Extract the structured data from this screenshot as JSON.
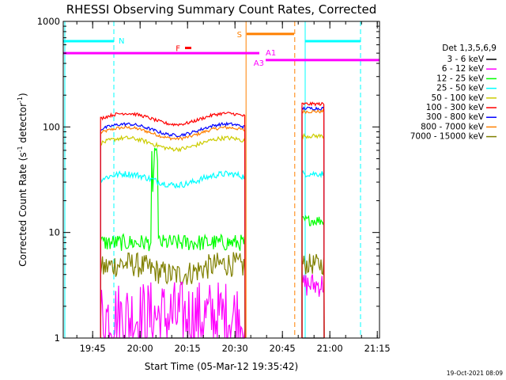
{
  "chart_data": {
    "type": "line",
    "title": "RHESSI Observing Summary Count Rates, Corrected",
    "xlabel": "Start Time (05-Mar-12 19:35:42)",
    "ylabel_main": "Corrected Count Rate (s",
    "ylabel_sup1": "-1",
    "ylabel_mid": " detector",
    "ylabel_sup2": "-1",
    "ylabel_end": ")",
    "y_scale": "log",
    "ylim": [
      1,
      1000
    ],
    "xlim_minutes": [
      0,
      100
    ],
    "x_ticks": [
      {
        "t": 9.3,
        "label": "19:45"
      },
      {
        "t": 24.3,
        "label": "20:00"
      },
      {
        "t": 39.3,
        "label": "20:15"
      },
      {
        "t": 54.3,
        "label": "20:30"
      },
      {
        "t": 69.3,
        "label": "20:45"
      },
      {
        "t": 84.3,
        "label": "21:00"
      },
      {
        "t": 99.3,
        "label": "21:15"
      }
    ],
    "y_ticks": [
      {
        "v": 1,
        "label": "1"
      },
      {
        "v": 10,
        "label": "10"
      },
      {
        "v": 100,
        "label": "100"
      },
      {
        "v": 1000,
        "label": "1000"
      }
    ],
    "legend_title": "Det 1,3,5,6,9",
    "legend_position": "right",
    "grid": false,
    "intervals": [
      [
        11.8,
        57.5
      ],
      [
        75.5,
        82.5
      ]
    ],
    "series": [
      {
        "name": "3 - 6 keV",
        "color": "#000000",
        "values": [
          {
            "t0": 11.8,
            "t1": 57.5,
            "v": 1.0,
            "noise": 0.0
          },
          {
            "t0": 75.5,
            "t1": 82.5,
            "v": 1.0,
            "noise": 0.0
          }
        ]
      },
      {
        "name": "6 - 12 keV",
        "color": "#ff00ff",
        "values": [
          {
            "t0": 11.8,
            "t1": 57.5,
            "v": 1.6,
            "noise": 0.35
          },
          {
            "t0": 75.5,
            "t1": 82.5,
            "v": 3.2,
            "noise": 0.12
          }
        ]
      },
      {
        "name": "12 - 25 keV",
        "color": "#00ff00",
        "values": [
          {
            "t0": 11.8,
            "t1": 57.5,
            "v": 8.0,
            "noise": 0.08
          },
          {
            "t0": 75.5,
            "t1": 82.5,
            "v": 13.0,
            "noise": 0.05
          }
        ]
      },
      {
        "name": "25 - 50 keV",
        "color": "#00ffff",
        "values": [
          {
            "t0": 11.8,
            "t1": 57.5,
            "v": 32,
            "noise": 0.03
          },
          {
            "t0": 75.5,
            "t1": 82.5,
            "v": 36,
            "noise": 0.03
          }
        ]
      },
      {
        "name": "50 - 100 keV",
        "color": "#cccc00",
        "values": [
          {
            "t0": 11.8,
            "t1": 57.5,
            "v": 70,
            "noise": 0.02
          },
          {
            "t0": 75.5,
            "t1": 82.5,
            "v": 82,
            "noise": 0.02
          }
        ]
      },
      {
        "name": "100 - 300 keV",
        "color": "#ff0000",
        "values": [
          {
            "t0": 11.8,
            "t1": 57.5,
            "v": 120,
            "noise": 0.015
          },
          {
            "t0": 75.5,
            "t1": 82.5,
            "v": 165,
            "noise": 0.015
          }
        ]
      },
      {
        "name": "300 - 800 keV",
        "color": "#0000ff",
        "values": [
          {
            "t0": 11.8,
            "t1": 57.5,
            "v": 95,
            "noise": 0.015
          },
          {
            "t0": 75.5,
            "t1": 82.5,
            "v": 150,
            "noise": 0.015
          }
        ]
      },
      {
        "name": "800 - 7000 keV",
        "color": "#ff8000",
        "values": [
          {
            "t0": 11.8,
            "t1": 57.5,
            "v": 88,
            "noise": 0.015
          },
          {
            "t0": 75.5,
            "t1": 82.5,
            "v": 140,
            "noise": 0.015
          }
        ]
      },
      {
        "name": "7000 - 15000 keV",
        "color": "#808000",
        "values": [
          {
            "t0": 11.8,
            "t1": 57.5,
            "v": 4.5,
            "noise": 0.12
          },
          {
            "t0": 75.5,
            "t1": 82.5,
            "v": 5.0,
            "noise": 0.1
          }
        ]
      }
    ],
    "flag_bars": [
      {
        "label": "N",
        "color": "#00ffff",
        "segments": [
          [
            0,
            16
          ],
          [
            76.5,
            94
          ]
        ],
        "level": 650
      },
      {
        "label": "F",
        "color": "#ff0000",
        "segments": [
          [
            38.5,
            40.5
          ]
        ],
        "level": 560
      },
      {
        "label": "S",
        "color": "#ff8000",
        "segments": [
          [
            58,
            73
          ]
        ],
        "level": 760
      },
      {
        "label": "A1",
        "color": "#ff00ff",
        "segments": [
          [
            0,
            62
          ]
        ],
        "level": 500
      },
      {
        "label": "A3",
        "color": "#ff00ff",
        "segments": [
          [
            64,
            100
          ]
        ],
        "level": 430
      }
    ],
    "vertical_markers": [
      {
        "t": 0.5,
        "color": "#00ffff",
        "style": "solid"
      },
      {
        "t": 16.0,
        "color": "#00ffff",
        "style": "dashed"
      },
      {
        "t": 57.8,
        "color": "#ff8000",
        "style": "solid"
      },
      {
        "t": 73.2,
        "color": "#ff8000",
        "style": "dashed"
      },
      {
        "t": 76.5,
        "color": "#00ffff",
        "style": "solid"
      },
      {
        "t": 94.0,
        "color": "#00ffff",
        "style": "dashed"
      }
    ],
    "timestamp": "19-Oct-2021 08:09"
  }
}
